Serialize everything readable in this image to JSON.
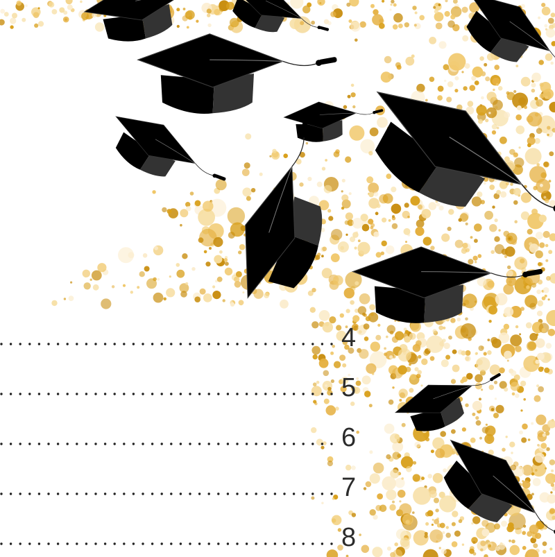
{
  "colors": {
    "background": "#ffffff",
    "confetti": [
      "#d9a01c",
      "#e5b040",
      "#f0c768",
      "#f6dc9c",
      "#fbeccc",
      "#c98f12"
    ],
    "cap": "#000000",
    "cap_side": "#333333",
    "number_text": "#2b2b2b",
    "leader_dots": "#222222"
  },
  "decoration": {
    "icon": "graduation-cap-icon",
    "style": "falling caps with gold confetti"
  },
  "toc_page_numbers": [
    "4",
    "5",
    "6",
    "7",
    "8"
  ]
}
